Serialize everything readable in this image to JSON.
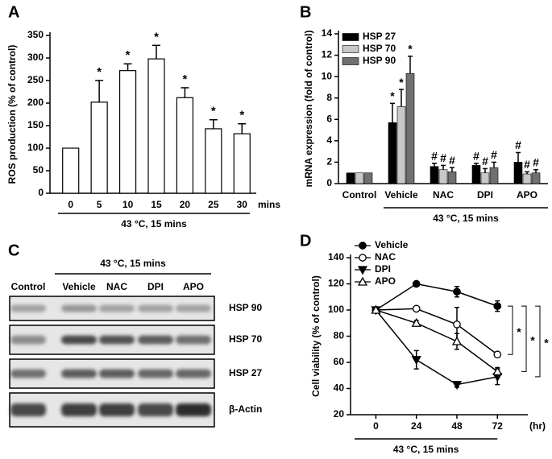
{
  "chart_data": [
    {
      "type": "bar",
      "panel": "A",
      "y_label": "ROS production (% of control)",
      "x_unit": "mins",
      "group_label": "43 °C, 15 mins",
      "categories": [
        "0",
        "5",
        "10",
        "15",
        "20",
        "25",
        "30"
      ],
      "values": [
        100,
        202,
        272,
        298,
        212,
        143,
        132
      ],
      "errors": [
        0,
        48,
        15,
        30,
        22,
        20,
        22
      ],
      "marks": [
        null,
        "*",
        "*",
        "*",
        "*",
        "*",
        "*"
      ],
      "color": "#ffffff",
      "ylim": [
        0,
        350
      ],
      "yticks": [
        0,
        50,
        100,
        150,
        200,
        250,
        300,
        350
      ]
    },
    {
      "type": "grouped_bar",
      "panel": "B",
      "y_label": "mRNA expression (fold of control)",
      "group_label": "43 °C, 15 mins",
      "legend": "top-left",
      "categories": [
        "Control",
        "Vehicle",
        "NAC",
        "DPI",
        "APO"
      ],
      "series": [
        {
          "name": "HSP 27",
          "color": "#000000",
          "values": [
            1,
            5.7,
            1.6,
            1.7,
            2.0
          ],
          "errors": [
            0,
            1.8,
            0.3,
            0.2,
            0.9
          ],
          "marks": [
            null,
            "*",
            "#",
            "#",
            "#"
          ]
        },
        {
          "name": "HSP 70",
          "color": "#c8c8c8",
          "values": [
            1,
            7.2,
            1.3,
            1.0,
            0.9
          ],
          "errors": [
            0,
            1.6,
            0.4,
            0.4,
            0.2
          ],
          "marks": [
            null,
            "*",
            "#",
            "#",
            "#"
          ]
        },
        {
          "name": "HSP 90",
          "color": "#707070",
          "values": [
            1,
            10.3,
            1.1,
            1.5,
            1.0
          ],
          "errors": [
            0,
            1.6,
            0.4,
            0.5,
            0.3
          ],
          "marks": [
            null,
            "*",
            "#",
            "#",
            "#"
          ]
        }
      ],
      "ylim": [
        0,
        14
      ],
      "yticks": [
        0,
        2,
        4,
        6,
        8,
        10,
        12,
        14
      ]
    },
    {
      "type": "blot",
      "panel": "C",
      "group_label": "43 °C, 15 mins",
      "lanes": [
        "Control",
        "Vehicle",
        "NAC",
        "DPI",
        "APO"
      ],
      "rows": [
        "HSP 90",
        "HSP 70",
        "HSP 27",
        "β-Actin"
      ]
    },
    {
      "type": "line",
      "panel": "D",
      "y_label": "Cell viability (% of control)",
      "x_unit": "(hr)",
      "group_label": "43 °C, 15 mins",
      "legend": "top-left",
      "x": [
        0,
        24,
        48,
        72
      ],
      "xlim": [
        -15,
        90
      ],
      "xticks": [
        0,
        24,
        48,
        72
      ],
      "series": [
        {
          "name": "Vehicle",
          "marker": "circle-filled",
          "color": "#000000",
          "values": [
            100,
            120,
            114,
            103
          ],
          "errors": [
            0,
            1,
            4,
            4
          ]
        },
        {
          "name": "NAC",
          "marker": "circle-open",
          "color": "#000000",
          "values": [
            100,
            101,
            89,
            66
          ],
          "errors": [
            0,
            1,
            13,
            2
          ]
        },
        {
          "name": "DPI",
          "marker": "triangle-down-filled",
          "color": "#000000",
          "values": [
            100,
            62,
            43,
            49
          ],
          "errors": [
            0,
            7,
            2,
            6
          ]
        },
        {
          "name": "APO",
          "marker": "triangle-up-open",
          "color": "#000000",
          "values": [
            100,
            90,
            76,
            53
          ],
          "errors": [
            0,
            2,
            6,
            3
          ]
        }
      ],
      "comparisons": [
        {
          "from": "Vehicle",
          "to": "NAC",
          "label": "*"
        },
        {
          "from": "Vehicle",
          "to": "APO",
          "label": "*"
        },
        {
          "from": "Vehicle",
          "to": "DPI",
          "label": "*"
        }
      ],
      "ylim": [
        20,
        140
      ],
      "yticks": [
        20,
        40,
        60,
        80,
        100,
        120,
        140
      ]
    }
  ]
}
